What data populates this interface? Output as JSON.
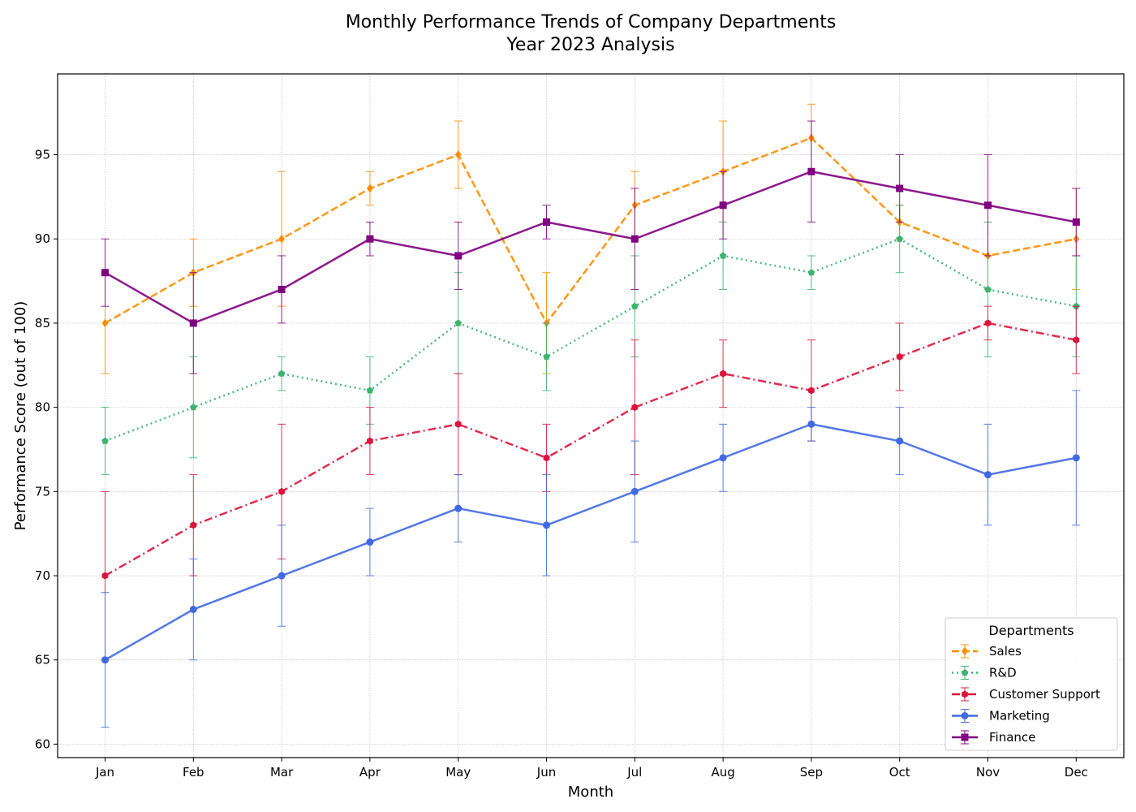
{
  "chart_data": {
    "type": "line",
    "title_line1": "Monthly Performance Trends of Company Departments",
    "title_line2": "Year 2023 Analysis",
    "xlabel": "Month",
    "ylabel": "Performance Score (out of 100)",
    "categories": [
      "Jan",
      "Feb",
      "Mar",
      "Apr",
      "May",
      "Jun",
      "Jul",
      "Aug",
      "Sep",
      "Oct",
      "Nov",
      "Dec"
    ],
    "ylim": [
      59.2,
      99.8
    ],
    "yticks": [
      60,
      65,
      70,
      75,
      80,
      85,
      90,
      95
    ],
    "grid": true,
    "legend": {
      "title": "Departments",
      "placement": "bottom-right"
    },
    "series": [
      {
        "name": "Sales",
        "color": "#FF8C00",
        "linestyle": "dashed",
        "marker": "diamond",
        "values": [
          85,
          88,
          90,
          93,
          95,
          85,
          92,
          94,
          96,
          91,
          89,
          90
        ],
        "errors": [
          3,
          2,
          4,
          1,
          2,
          3,
          2,
          3,
          2,
          1,
          2,
          3
        ]
      },
      {
        "name": "R&D",
        "color": "#3CB371",
        "linestyle": "dotted",
        "marker": "pentagon",
        "values": [
          78,
          80,
          82,
          81,
          85,
          83,
          86,
          89,
          88,
          90,
          87,
          86
        ],
        "errors": [
          2,
          3,
          1,
          2,
          3,
          2,
          3,
          2,
          1,
          2,
          4,
          3
        ]
      },
      {
        "name": "Customer Support",
        "color": "#DC143C",
        "linestyle": "dashdot",
        "marker": "hexagon",
        "values": [
          70,
          73,
          75,
          78,
          79,
          77,
          80,
          82,
          81,
          83,
          85,
          84
        ],
        "errors": [
          5,
          3,
          4,
          2,
          3,
          2,
          4,
          2,
          3,
          2,
          1,
          2
        ]
      },
      {
        "name": "Marketing",
        "color": "#4169E1",
        "linestyle": "solid",
        "marker": "circle",
        "values": [
          65,
          68,
          70,
          72,
          74,
          73,
          75,
          77,
          79,
          78,
          76,
          77
        ],
        "errors": [
          4,
          3,
          3,
          2,
          2,
          3,
          3,
          2,
          1,
          2,
          3,
          4
        ]
      },
      {
        "name": "Finance",
        "color": "#800080",
        "linestyle": "solid",
        "marker": "square",
        "values": [
          88,
          85,
          87,
          90,
          89,
          91,
          90,
          92,
          94,
          93,
          92,
          91
        ],
        "errors": [
          2,
          3,
          2,
          1,
          2,
          1,
          3,
          2,
          3,
          2,
          3,
          2
        ]
      }
    ]
  }
}
